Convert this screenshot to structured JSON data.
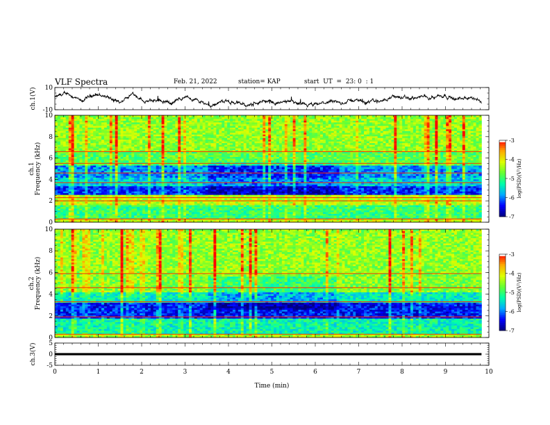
{
  "header": {
    "title": "VLF Spectra",
    "date": "Feb. 21, 2022",
    "station": "station= KAP",
    "start_ut": "start  UT  =  23: 0  : 1"
  },
  "colors": {
    "cmap": [
      "#00007f",
      "#0000ff",
      "#00aaff",
      "#00ffaa",
      "#66ff33",
      "#ddff00",
      "#ffaa00",
      "#ff0000",
      "#ffffff"
    ]
  },
  "chart_data": [
    {
      "type": "line",
      "name": "ch1-waveform",
      "ylabel": "ch.1(V)",
      "ylim": [
        -10,
        10
      ],
      "yticks": [
        {
          "value": 10,
          "label": "10"
        },
        {
          "value": -10,
          "label": "-10"
        }
      ],
      "xlim": [
        0,
        10
      ],
      "trend": [
        [
          0.0,
          1
        ],
        [
          0.3,
          5
        ],
        [
          0.6,
          -3
        ],
        [
          0.9,
          4
        ],
        [
          1.2,
          2
        ],
        [
          1.5,
          -5
        ],
        [
          1.8,
          5
        ],
        [
          2.1,
          -3
        ],
        [
          2.4,
          -1
        ],
        [
          2.7,
          -4
        ],
        [
          3.0,
          2
        ],
        [
          3.3,
          -2
        ],
        [
          3.6,
          -6
        ],
        [
          3.9,
          -2
        ],
        [
          4.2,
          -4
        ],
        [
          4.5,
          -6
        ],
        [
          4.8,
          -2
        ],
        [
          5.1,
          -4
        ],
        [
          5.4,
          -3
        ],
        [
          5.7,
          -6
        ],
        [
          6.0,
          -6
        ],
        [
          6.3,
          -3
        ],
        [
          6.6,
          -4
        ],
        [
          6.9,
          -1
        ],
        [
          7.2,
          -3
        ],
        [
          7.5,
          -2
        ],
        [
          7.8,
          2
        ],
        [
          8.1,
          0
        ],
        [
          8.4,
          1
        ],
        [
          8.7,
          2
        ],
        [
          9.0,
          3
        ],
        [
          9.3,
          -1
        ],
        [
          9.6,
          1
        ],
        [
          9.8,
          -3
        ]
      ]
    },
    {
      "type": "heatmap",
      "name": "ch1-spectrogram",
      "ylabel": "ch.1\nFrequency (kHz)",
      "xlim": [
        0,
        10
      ],
      "ylim": [
        0,
        10
      ],
      "yticks": [
        0,
        2,
        4,
        6,
        8,
        10
      ],
      "colorbar": {
        "label": "log(PSD)(V²/Hz)",
        "range": [
          -7,
          -3
        ],
        "ticks": [
          -3,
          -4,
          -5,
          -6,
          -7
        ]
      },
      "bands": [
        {
          "f0": 0.0,
          "f1": 0.4,
          "level": -4.2
        },
        {
          "f0": 0.4,
          "f1": 1.6,
          "level": -5.0
        },
        {
          "f0": 1.6,
          "f1": 2.6,
          "level": -4.3
        },
        {
          "f0": 2.6,
          "f1": 3.4,
          "level": -6.3
        },
        {
          "f0": 3.4,
          "f1": 4.2,
          "level": -5.6
        },
        {
          "f0": 4.2,
          "f1": 5.4,
          "level": -5.9
        },
        {
          "f0": 5.4,
          "f1": 6.6,
          "level": -4.8
        },
        {
          "f0": 6.6,
          "f1": 10.0,
          "level": -4.5
        }
      ],
      "lines_khz": [
        0.3,
        2.0,
        2.3,
        3.7,
        4.6,
        5.5,
        6.6
      ]
    },
    {
      "type": "heatmap",
      "name": "ch2-spectrogram",
      "ylabel": "ch.2\nFrequency (kHz)",
      "xlim": [
        0,
        10
      ],
      "ylim": [
        0,
        10
      ],
      "yticks": [
        0,
        2,
        4,
        6,
        8,
        10
      ],
      "colorbar": {
        "label": "log(PSD)(V²/Hz)",
        "range": [
          -7,
          -3
        ],
        "ticks": [
          -3,
          -4,
          -5,
          -6,
          -7
        ]
      },
      "bands": [
        {
          "f0": 0.0,
          "f1": 0.4,
          "level": -4.4
        },
        {
          "f0": 0.4,
          "f1": 1.8,
          "level": -5.3
        },
        {
          "f0": 1.8,
          "f1": 3.2,
          "level": -6.4
        },
        {
          "f0": 3.2,
          "f1": 4.2,
          "level": -5.4
        },
        {
          "f0": 4.2,
          "f1": 6.0,
          "level": -4.6
        },
        {
          "f0": 6.0,
          "f1": 10.0,
          "level": -4.5
        }
      ],
      "lines_khz": [
        0.3,
        1.9,
        3.3,
        4.6,
        5.9
      ]
    },
    {
      "type": "line",
      "name": "ch3-waveform",
      "ylabel": "ch.3(V)",
      "ylim": [
        -5,
        5
      ],
      "yticks": [
        {
          "value": 5,
          "label": "5"
        },
        {
          "value": 0,
          "label": "0"
        },
        {
          "value": -5,
          "label": "-5"
        }
      ],
      "xlim": [
        0,
        10
      ],
      "level": 0,
      "band_width": 1.0
    }
  ],
  "xaxis": {
    "label": "Time (min)",
    "ticks": [
      0,
      1,
      2,
      3,
      4,
      5,
      6,
      7,
      8,
      9,
      10
    ],
    "data_end": 9.83
  }
}
